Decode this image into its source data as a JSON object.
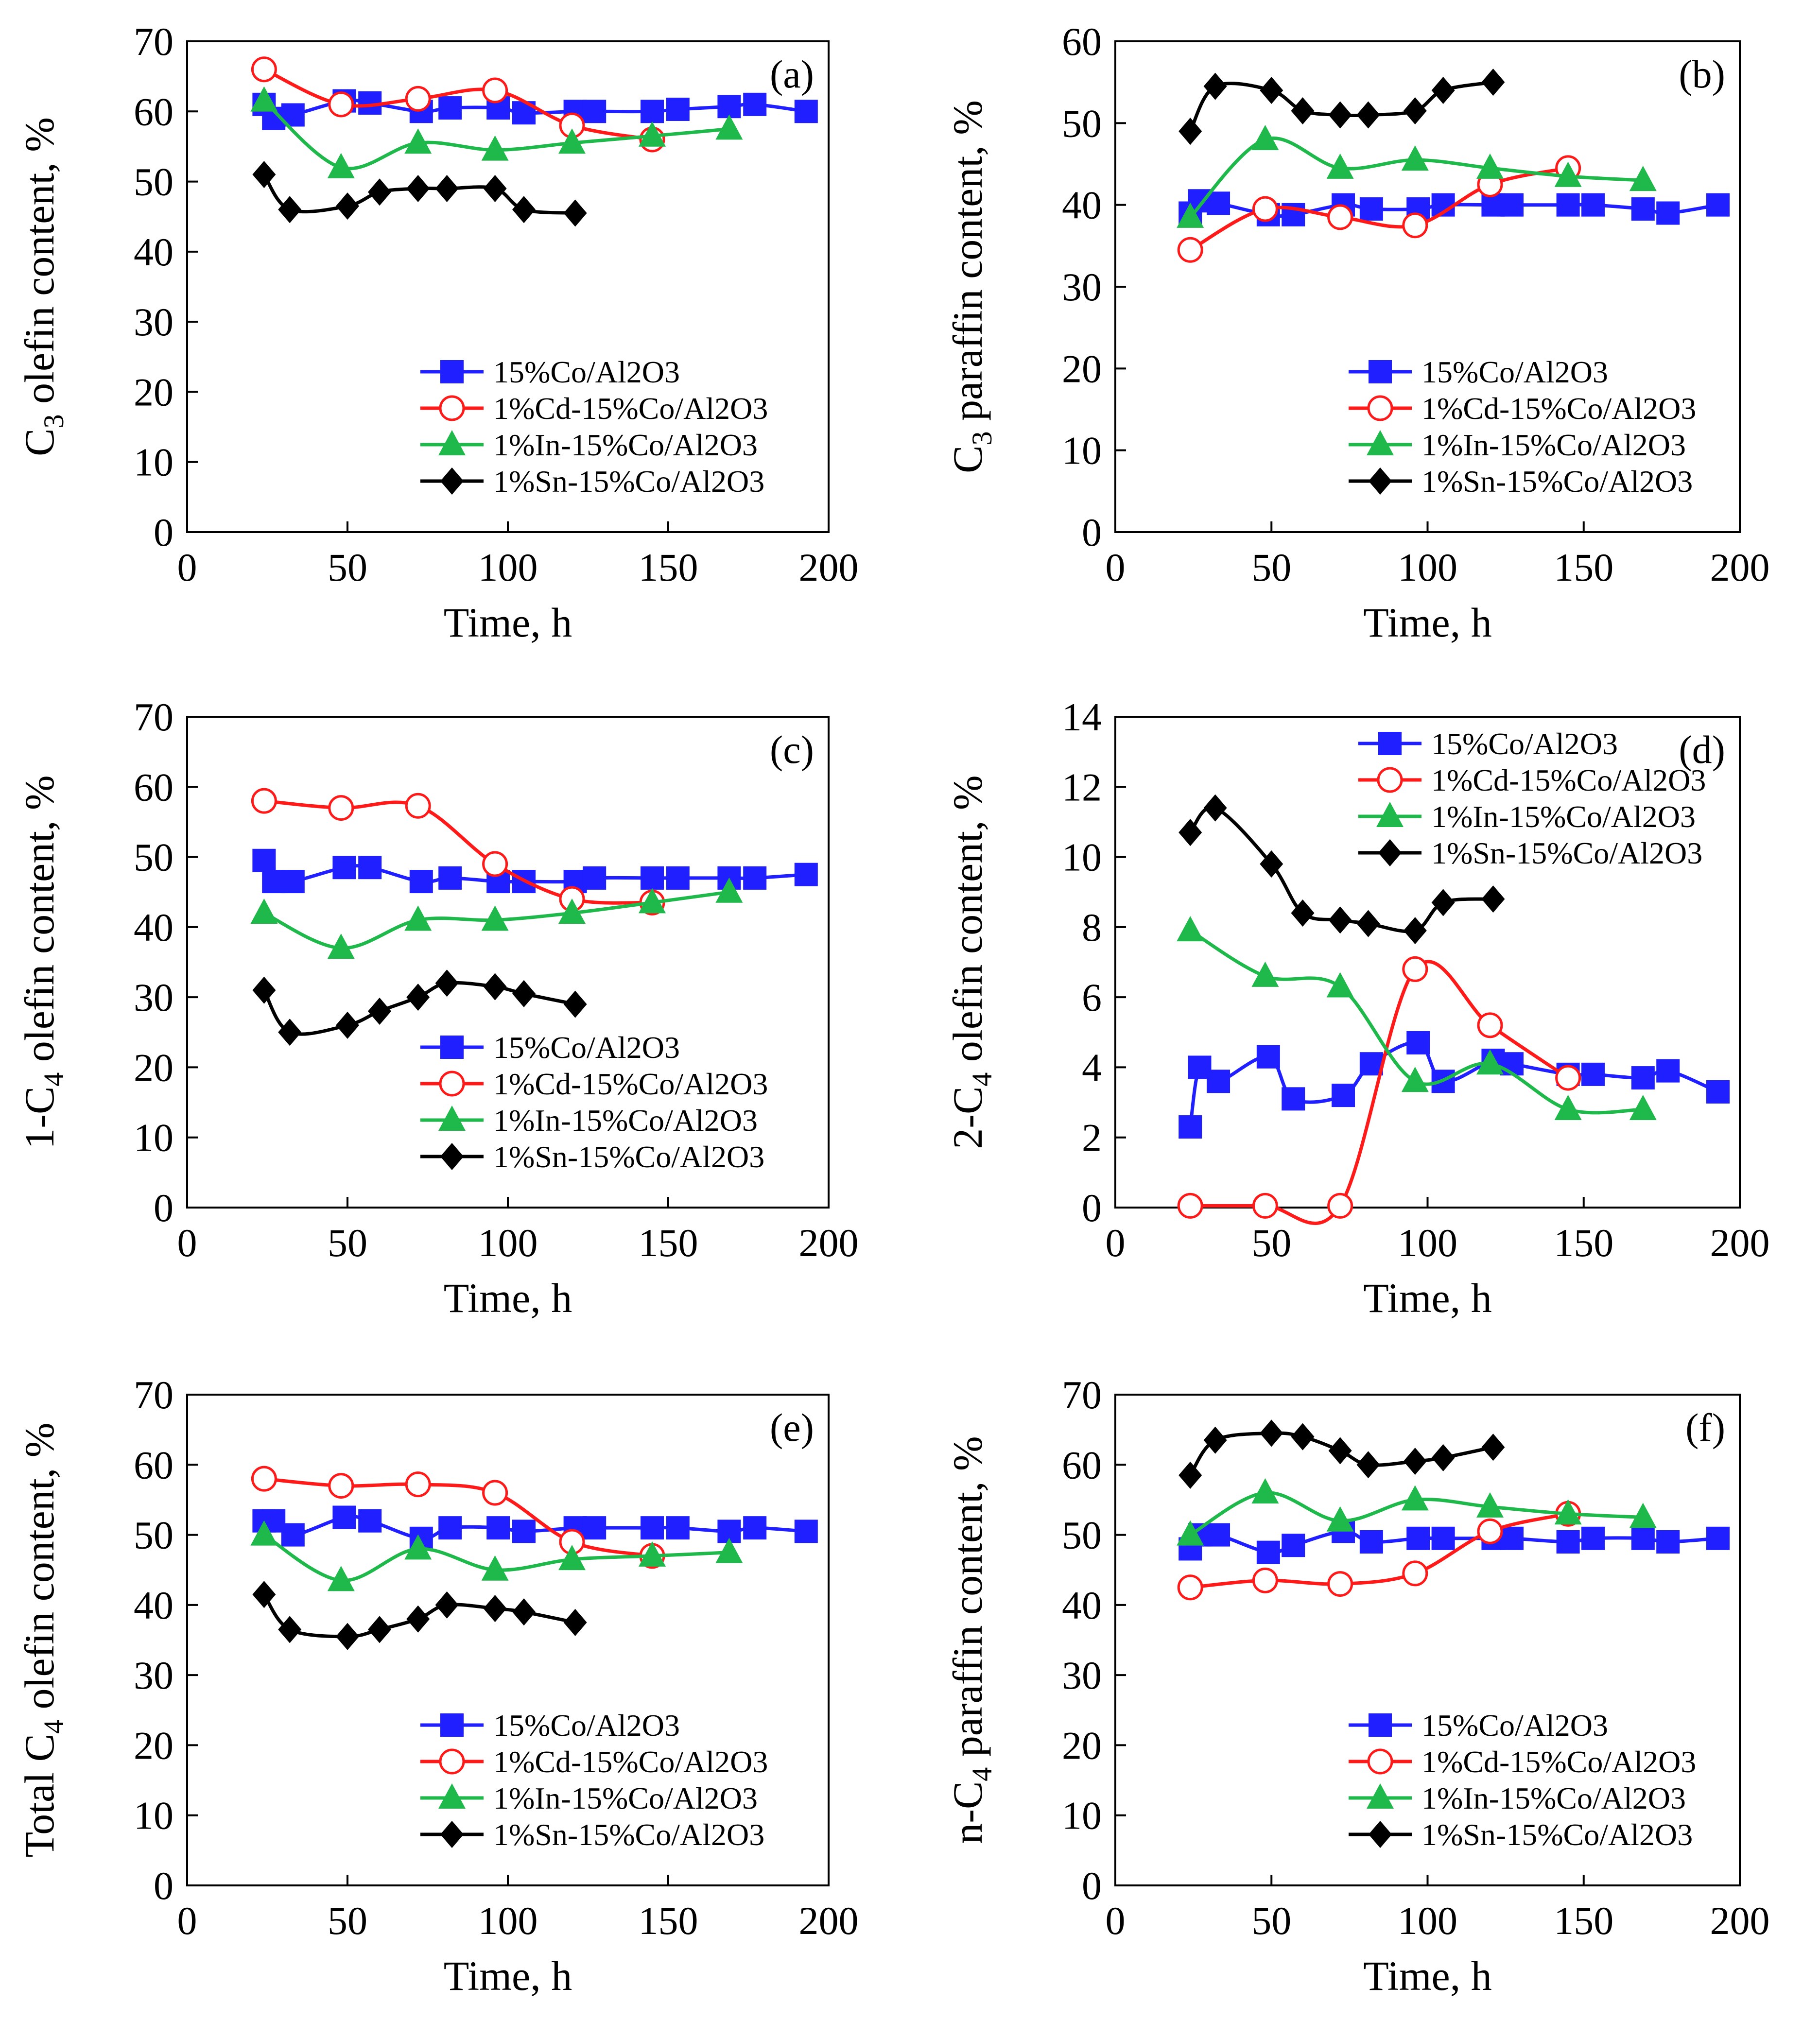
{
  "figure": {
    "series_colors": {
      "Co": "#1f1fff",
      "Cd": "#ff1a1a",
      "In": "#1fb84a",
      "Sn": "#000000"
    }
  },
  "chart_data": [
    {
      "id": "a",
      "type": "line",
      "letter": "(a)",
      "xlabel": "Time, h",
      "ylabel": "C3 olefin content, %",
      "ylabel_parts": [
        "C",
        "3",
        " olefin content, %"
      ],
      "xlim": [
        0,
        200
      ],
      "ylim": [
        0,
        70
      ],
      "xticks": [
        0,
        50,
        100,
        150,
        200
      ],
      "yticks": [
        0,
        10,
        20,
        30,
        40,
        50,
        60,
        70
      ],
      "legend_pos": "bottom-right",
      "series": [
        {
          "name": "15%Co/Al2O3",
          "key": "Co",
          "marker": "square",
          "x": [
            24,
            27,
            33,
            49,
            57,
            73,
            82,
            97,
            105,
            121,
            127,
            145,
            153,
            169,
            177,
            193
          ],
          "y": [
            61,
            59,
            59.5,
            61.5,
            61.2,
            60,
            60.5,
            60.5,
            59.8,
            60,
            60,
            60,
            60.3,
            60.7,
            61,
            60
          ]
        },
        {
          "name": "1%Cd-15%Co/Al2O3",
          "key": "Cd",
          "marker": "circle",
          "x": [
            24,
            48,
            72,
            96,
            120,
            145
          ],
          "y": [
            66,
            61,
            61.8,
            63,
            58,
            56
          ]
        },
        {
          "name": "1%In-15%Co/Al2O3",
          "key": "In",
          "marker": "triangle",
          "x": [
            24,
            48,
            72,
            96,
            120,
            145,
            169
          ],
          "y": [
            61.5,
            52,
            55.5,
            54.5,
            55.5,
            56.5,
            57.5
          ]
        },
        {
          "name": "1%Sn-15%Co/Al2O3",
          "key": "Sn",
          "marker": "diamond",
          "x": [
            24,
            32,
            50,
            60,
            72,
            81,
            96,
            105,
            121
          ],
          "y": [
            51,
            46,
            46.5,
            48.5,
            49,
            49,
            49,
            46,
            45.5
          ]
        }
      ]
    },
    {
      "id": "b",
      "type": "line",
      "letter": "(b)",
      "xlabel": "Time, h",
      "ylabel": "C3 paraffin content, %",
      "ylabel_parts": [
        "C",
        "3",
        " paraffin content, %"
      ],
      "xlim": [
        0,
        200
      ],
      "ylim": [
        0,
        60
      ],
      "xticks": [
        0,
        50,
        100,
        150,
        200
      ],
      "yticks": [
        0,
        10,
        20,
        30,
        40,
        50,
        60
      ],
      "legend_pos": "bottom-right",
      "series": [
        {
          "name": "15%Co/Al2O3",
          "key": "Co",
          "marker": "square",
          "x": [
            24,
            27,
            33,
            49,
            57,
            73,
            82,
            97,
            105,
            121,
            127,
            145,
            153,
            169,
            177,
            193
          ],
          "y": [
            39,
            40.5,
            40.2,
            38.8,
            38.8,
            40,
            39.5,
            39.5,
            40,
            40,
            40,
            40,
            40,
            39.5,
            39,
            40
          ]
        },
        {
          "name": "1%Cd-15%Co/Al2O3",
          "key": "Cd",
          "marker": "circle",
          "x": [
            24,
            48,
            72,
            96,
            120,
            145
          ],
          "y": [
            34.5,
            39.5,
            38.5,
            37.5,
            42.5,
            44.5
          ]
        },
        {
          "name": "1%In-15%Co/Al2O3",
          "key": "In",
          "marker": "triangle",
          "x": [
            24,
            48,
            72,
            96,
            120,
            145,
            169
          ],
          "y": [
            38.5,
            48,
            44.5,
            45.5,
            44.5,
            43.5,
            43
          ]
        },
        {
          "name": "1%Sn-15%Co/Al2O3",
          "key": "Sn",
          "marker": "diamond",
          "x": [
            24,
            32,
            50,
            60,
            72,
            81,
            96,
            105,
            121
          ],
          "y": [
            49,
            54.5,
            54,
            51.5,
            51,
            51,
            51.5,
            54,
            55
          ]
        }
      ]
    },
    {
      "id": "c",
      "type": "line",
      "letter": "(c)",
      "xlabel": "Time, h",
      "ylabel": "1-C4 olefin content, %",
      "ylabel_parts": [
        "1-C",
        "4",
        " olefin content, %"
      ],
      "xlim": [
        0,
        200
      ],
      "ylim": [
        0,
        70
      ],
      "xticks": [
        0,
        50,
        100,
        150,
        200
      ],
      "yticks": [
        0,
        10,
        20,
        30,
        40,
        50,
        60,
        70
      ],
      "legend_pos": "bottom-right",
      "series": [
        {
          "name": "15%Co/Al2O3",
          "key": "Co",
          "marker": "square",
          "x": [
            24,
            27,
            33,
            49,
            57,
            73,
            82,
            97,
            105,
            121,
            127,
            145,
            153,
            169,
            177,
            193
          ],
          "y": [
            49.5,
            46.5,
            46.5,
            48.5,
            48.5,
            46.5,
            47,
            46.5,
            46.5,
            46.5,
            47,
            47,
            47,
            47,
            47,
            47.5
          ]
        },
        {
          "name": "1%Cd-15%Co/Al2O3",
          "key": "Cd",
          "marker": "circle",
          "x": [
            24,
            48,
            72,
            96,
            120,
            145
          ],
          "y": [
            58,
            57,
            57.3,
            49,
            44,
            43.5
          ]
        },
        {
          "name": "1%In-15%Co/Al2O3",
          "key": "In",
          "marker": "triangle",
          "x": [
            24,
            48,
            72,
            96,
            120,
            145,
            169
          ],
          "y": [
            42,
            37,
            41,
            41,
            42,
            43.5,
            45
          ]
        },
        {
          "name": "1%Sn-15%Co/Al2O3",
          "key": "Sn",
          "marker": "diamond",
          "x": [
            24,
            32,
            50,
            60,
            72,
            81,
            96,
            105,
            121
          ],
          "y": [
            31,
            25,
            26,
            28,
            30,
            32,
            31.5,
            30.5,
            29
          ]
        }
      ]
    },
    {
      "id": "d",
      "type": "line",
      "letter": "(d)",
      "xlabel": "Time, h",
      "ylabel": "2-C4 olefin content, %",
      "ylabel_parts": [
        "2-C",
        "4",
        " olefin content, %"
      ],
      "xlim": [
        0,
        200
      ],
      "ylim": [
        0,
        14
      ],
      "xticks": [
        0,
        50,
        100,
        150,
        200
      ],
      "yticks": [
        0,
        2,
        4,
        6,
        8,
        10,
        12,
        14
      ],
      "legend_pos": "top-right",
      "series": [
        {
          "name": "15%Co/Al2O3",
          "key": "Co",
          "marker": "square",
          "x": [
            24,
            27,
            33,
            49,
            57,
            73,
            82,
            97,
            105,
            121,
            127,
            145,
            153,
            169,
            177,
            193
          ],
          "y": [
            2.3,
            4,
            3.6,
            4.3,
            3.1,
            3.2,
            4.1,
            4.7,
            3.6,
            4.2,
            4.1,
            3.8,
            3.8,
            3.7,
            3.9,
            3.3
          ]
        },
        {
          "name": "1%Cd-15%Co/Al2O3",
          "key": "Cd",
          "marker": "circle",
          "x": [
            24,
            48,
            72,
            96,
            120,
            145
          ],
          "y": [
            0.05,
            0.05,
            0.05,
            6.8,
            5.2,
            3.7
          ]
        },
        {
          "name": "1%In-15%Co/Al2O3",
          "key": "In",
          "marker": "triangle",
          "x": [
            24,
            48,
            72,
            96,
            120,
            145,
            169
          ],
          "y": [
            7.9,
            6.6,
            6.3,
            3.6,
            4.1,
            2.8,
            2.8
          ]
        },
        {
          "name": "1%Sn-15%Co/Al2O3",
          "key": "Sn",
          "marker": "diamond",
          "x": [
            24,
            32,
            50,
            60,
            72,
            81,
            96,
            105,
            121
          ],
          "y": [
            10.7,
            11.4,
            9.8,
            8.4,
            8.2,
            8.1,
            7.9,
            8.7,
            8.8
          ]
        }
      ]
    },
    {
      "id": "e",
      "type": "line",
      "letter": "(e)",
      "xlabel": "Time, h",
      "ylabel": "Total C4 olefin content, %",
      "ylabel_parts": [
        "Total C",
        "4",
        " olefin content, %"
      ],
      "xlim": [
        0,
        200
      ],
      "ylim": [
        0,
        70
      ],
      "xticks": [
        0,
        50,
        100,
        150,
        200
      ],
      "yticks": [
        0,
        10,
        20,
        30,
        40,
        50,
        60,
        70
      ],
      "legend_pos": "bottom-right",
      "series": [
        {
          "name": "15%Co/Al2O3",
          "key": "Co",
          "marker": "square",
          "x": [
            24,
            27,
            33,
            49,
            57,
            73,
            82,
            97,
            105,
            121,
            127,
            145,
            153,
            169,
            177,
            193
          ],
          "y": [
            52,
            52,
            50,
            52.5,
            52,
            49.5,
            51,
            51,
            50.5,
            51,
            51,
            51,
            51,
            50.5,
            51,
            50.5
          ]
        },
        {
          "name": "1%Cd-15%Co/Al2O3",
          "key": "Cd",
          "marker": "circle",
          "x": [
            24,
            48,
            72,
            96,
            120,
            145
          ],
          "y": [
            58,
            57,
            57.2,
            56,
            49,
            47
          ]
        },
        {
          "name": "1%In-15%Co/Al2O3",
          "key": "In",
          "marker": "triangle",
          "x": [
            24,
            48,
            72,
            96,
            120,
            145,
            169
          ],
          "y": [
            50,
            43.5,
            48,
            45,
            46.5,
            47,
            47.5
          ]
        },
        {
          "name": "1%Sn-15%Co/Al2O3",
          "key": "Sn",
          "marker": "diamond",
          "x": [
            24,
            32,
            50,
            60,
            72,
            81,
            96,
            105,
            121
          ],
          "y": [
            41.5,
            36.5,
            35.5,
            36.5,
            38,
            40,
            39.5,
            39,
            37.5
          ]
        }
      ]
    },
    {
      "id": "f",
      "type": "line",
      "letter": "(f)",
      "xlabel": "Time, h",
      "ylabel": "n-C4 paraffin content, %",
      "ylabel_parts": [
        "n-C",
        "4",
        " paraffin content, %"
      ],
      "xlim": [
        0,
        200
      ],
      "ylim": [
        0,
        70
      ],
      "xticks": [
        0,
        50,
        100,
        150,
        200
      ],
      "yticks": [
        0,
        10,
        20,
        30,
        40,
        50,
        60,
        70
      ],
      "legend_pos": "bottom-right",
      "series": [
        {
          "name": "15%Co/Al2O3",
          "key": "Co",
          "marker": "square",
          "x": [
            24,
            27,
            33,
            49,
            57,
            73,
            82,
            97,
            105,
            121,
            127,
            145,
            153,
            169,
            177,
            193
          ],
          "y": [
            48,
            50,
            50,
            47.5,
            48.5,
            50.5,
            49,
            49.5,
            49.5,
            49.5,
            49.5,
            49,
            49.5,
            49.5,
            49,
            49.5
          ]
        },
        {
          "name": "1%Cd-15%Co/Al2O3",
          "key": "Cd",
          "marker": "circle",
          "x": [
            24,
            48,
            72,
            96,
            120,
            145
          ],
          "y": [
            42.5,
            43.5,
            43,
            44.5,
            50.5,
            53
          ]
        },
        {
          "name": "1%In-15%Co/Al2O3",
          "key": "In",
          "marker": "triangle",
          "x": [
            24,
            48,
            72,
            96,
            120,
            145,
            169
          ],
          "y": [
            50,
            56,
            52,
            55,
            54,
            53,
            52.5
          ]
        },
        {
          "name": "1%Sn-15%Co/Al2O3",
          "key": "Sn",
          "marker": "diamond",
          "x": [
            24,
            32,
            50,
            60,
            72,
            81,
            96,
            105,
            121
          ],
          "y": [
            58.5,
            63.5,
            64.5,
            64,
            62,
            60,
            60.5,
            61,
            62.5
          ]
        }
      ]
    }
  ]
}
